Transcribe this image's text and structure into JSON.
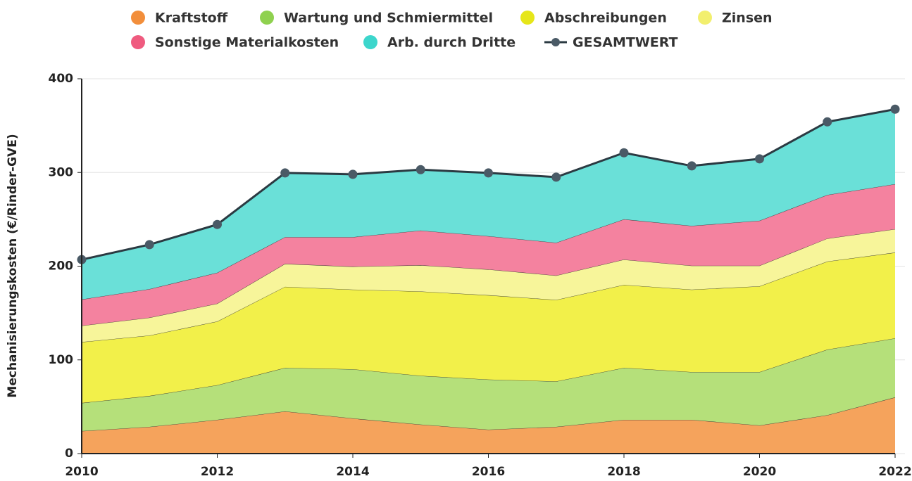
{
  "chart_data": {
    "type": "stacked_area",
    "y_label": "Mechanisierungskosten (€/Rinder-GVE)",
    "x": [
      2010,
      2011,
      2012,
      2013,
      2014,
      2015,
      2016,
      2017,
      2018,
      2019,
      2020,
      2021,
      2022
    ],
    "xlim": [
      2010,
      2022
    ],
    "xticks": [
      2010,
      2012,
      2014,
      2016,
      2018,
      2020,
      2022
    ],
    "ylim": [
      0,
      400
    ],
    "yticks": [
      0,
      100,
      200,
      300,
      400
    ],
    "grid": true,
    "series": [
      {
        "name": "Kraftstoff",
        "color": "#f28e3b",
        "fill": "#f5a35c",
        "values": [
          24,
          28.5,
          36,
          45,
          37.5,
          31,
          25.5,
          28.5,
          36,
          36,
          30,
          41,
          60
        ]
      },
      {
        "name": "Wartung und Schmiermittel",
        "color": "#8fd14f",
        "fill": "#b5e07a",
        "values": [
          30,
          33,
          37,
          46.5,
          52.5,
          52,
          53.5,
          48.5,
          55.5,
          51,
          57,
          70,
          63
        ]
      },
      {
        "name": "Abschreibungen",
        "color": "#e6e619",
        "fill": "#f2f04a",
        "values": [
          65,
          64.5,
          68,
          86.5,
          85,
          90,
          90,
          87,
          88.5,
          88,
          91.5,
          94,
          91.5
        ]
      },
      {
        "name": "Zinsen",
        "color": "#f2ef6e",
        "fill": "#f7f59a",
        "values": [
          17.5,
          19,
          19,
          24.5,
          24.5,
          28,
          27.5,
          26,
          27,
          25.5,
          22,
          24.5,
          25
        ]
      },
      {
        "name": "Sonstige Materialkosten",
        "color": "#ef5b7f",
        "fill": "#f4829f",
        "values": [
          28,
          30.5,
          33,
          28.5,
          31.5,
          37,
          35.5,
          35,
          43,
          42.5,
          48,
          46.5,
          48
        ]
      },
      {
        "name": "Arb. durch Dritte",
        "color": "#3dd6cc",
        "fill": "#6ae0d8",
        "values": [
          42.5,
          47.5,
          51.5,
          68.5,
          67,
          65,
          67.5,
          70,
          71,
          64,
          66,
          78,
          80
        ]
      }
    ],
    "total": {
      "name": "GESAMTWERT",
      "color": "#2b3a42",
      "values": [
        207,
        223,
        244.5,
        299.5,
        298,
        303,
        299.5,
        295,
        321,
        307,
        314.5,
        354,
        367.5
      ]
    }
  }
}
